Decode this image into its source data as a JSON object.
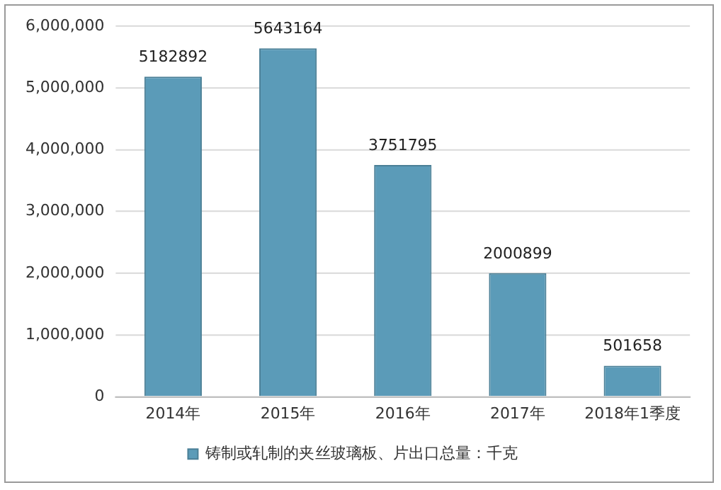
{
  "chart_data": {
    "type": "bar",
    "categories": [
      "2014年",
      "2015年",
      "2016年",
      "2017年",
      "2018年1季度"
    ],
    "series": [
      {
        "name": "铸制或轧制的夹丝玻璃板、片出口总量：千克",
        "color": "#5b9bb8",
        "values": [
          5182892,
          5643164,
          3751795,
          2000899,
          501658
        ]
      }
    ],
    "ylim": [
      0,
      6000000
    ],
    "yticks": [
      0,
      {
        "value": 1000000,
        "label": "1,000,000"
      },
      {
        "value": 2000000,
        "label": "2,000,000"
      },
      {
        "value": 3000000,
        "label": "3,000,000"
      },
      {
        "value": 4000000,
        "label": "4,000,000"
      },
      {
        "value": 5000000,
        "label": "5,000,000"
      },
      {
        "value": 6000000,
        "label": "6,000,000"
      }
    ],
    "grid": "y",
    "legend": "bottom",
    "data_labels": true
  }
}
